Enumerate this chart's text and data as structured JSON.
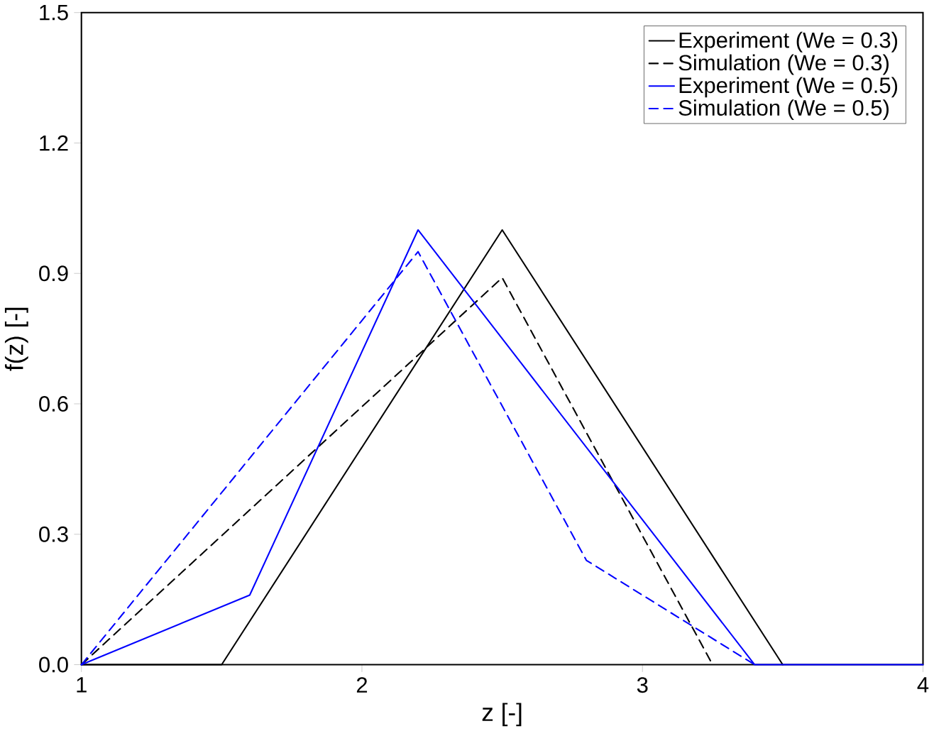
{
  "chart_data": {
    "type": "line",
    "xlabel": "z [-]",
    "ylabel": "f(z) [-]",
    "xlim": [
      1,
      4
    ],
    "ylim": [
      0,
      1.5
    ],
    "xticks": [
      1,
      2,
      3,
      4
    ],
    "yticks": [
      {
        "value": 0,
        "label": "0.0"
      },
      {
        "value": 0.3,
        "label": "0.3"
      },
      {
        "value": 0.6,
        "label": "0.6"
      },
      {
        "value": 0.9,
        "label": "0.9"
      },
      {
        "value": 1.2,
        "label": "1.2"
      },
      {
        "value": 1.5,
        "label": "1.5"
      }
    ],
    "legend": "top right",
    "grid": false,
    "marker": "none",
    "series": [
      {
        "name": "Experiment (We = 0.3)",
        "color": "#000000",
        "line_style": "solid",
        "x": [
          1,
          1.5,
          2.5,
          3.5
        ],
        "values": [
          0,
          0,
          1.0,
          0
        ]
      },
      {
        "name": "Simulation (We = 0.3)",
        "color": "#000000",
        "line_style": "dashed",
        "x": [
          1,
          2.5,
          3.25
        ],
        "values": [
          0,
          0.89,
          0
        ]
      },
      {
        "name": "Experiment (We = 0.5)",
        "color": "#0000ff",
        "line_style": "solid",
        "x": [
          1,
          1.6,
          2.2,
          3.4,
          4
        ],
        "values": [
          0,
          0.16,
          1.0,
          0,
          0
        ]
      },
      {
        "name": "Simulation (We = 0.5)",
        "color": "#0000ff",
        "line_style": "dashed",
        "x": [
          1,
          2.2,
          2.8,
          3.4
        ],
        "values": [
          0,
          0.95,
          0.24,
          0
        ]
      }
    ]
  }
}
